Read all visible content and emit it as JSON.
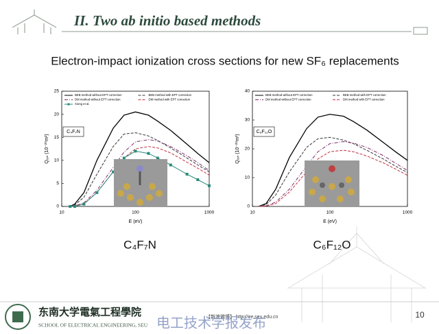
{
  "slide": {
    "title": "II. Two ab initio based methods",
    "subtitle": "Electron-impact ionization cross sections for new SF₆ replacements",
    "captions": [
      "C₄F₇N",
      "C₆F₁₂O"
    ],
    "school_cn": "东南大学電氣工程學院",
    "school_en": "SCHOOL OF ELECTRICAL ENGINEERING, SEU",
    "watermark": "【新浪微博】 http://ee.seu.edu.cn",
    "publisher": "电工技术学报发布",
    "page": "10"
  },
  "chart_data": [
    {
      "type": "line",
      "annotation": "C₄F₇N",
      "xlabel": "E (eV)",
      "ylabel": "Qᵢₒₙ (10⁻²⁰m²)",
      "xscale": "log",
      "xlim": [
        10,
        1000
      ],
      "xticks": [
        10,
        100,
        1000
      ],
      "ylim": [
        0,
        25
      ],
      "yticks": [
        0,
        5,
        10,
        15,
        20,
        25
      ],
      "x": [
        13,
        15,
        20,
        30,
        50,
        70,
        100,
        150,
        200,
        300,
        500,
        700,
        1000
      ],
      "series": [
        {
          "name": "BEB method without EPT correction",
          "color": "#000000",
          "style": "solid",
          "values": [
            0,
            0.5,
            3,
            10,
            17,
            19.8,
            20.5,
            19.8,
            18.5,
            16.5,
            13.5,
            11.5,
            9.5
          ]
        },
        {
          "name": "BEB method with EPT correction",
          "color": "#333333",
          "style": "dashed",
          "values": [
            0,
            0.3,
            2,
            7,
            13,
            15.7,
            16,
            15.3,
            14.3,
            12.7,
            10.5,
            9,
            7.5
          ]
        },
        {
          "name": "DM method without EPT correction",
          "color": "#7a2a6a",
          "style": "dashdot",
          "values": [
            0,
            0.1,
            0.8,
            3.5,
            8.5,
            11.8,
            14,
            14.5,
            14.2,
            13,
            11,
            9.5,
            7.8
          ]
        },
        {
          "name": "DM method with EPT correction",
          "color": "#c03040",
          "style": "dashed",
          "values": [
            0,
            0.1,
            0.6,
            3,
            7.5,
            10.5,
            12.5,
            13,
            12.7,
            11.6,
            9.6,
            8.3,
            6.8
          ]
        },
        {
          "name": "Xiong et al.",
          "color": "#2a8a7a",
          "style": "markers",
          "values": [
            0,
            0,
            0.5,
            3,
            7.5,
            10.5,
            12,
            11.5,
            10.5,
            9,
            7,
            5.8,
            4.5
          ]
        }
      ]
    },
    {
      "type": "line",
      "annotation": "C₆F₁₂O",
      "xlabel": "E (eV)",
      "ylabel": "Qᵢₒₙ (10⁻²⁰m²)",
      "xscale": "log",
      "xlim": [
        10,
        1000
      ],
      "xticks": [
        10,
        100,
        1000
      ],
      "ylim": [
        0,
        40
      ],
      "yticks": [
        0,
        10,
        20,
        30,
        40
      ],
      "x": [
        12,
        15,
        20,
        30,
        50,
        70,
        100,
        150,
        200,
        300,
        500,
        700,
        1000
      ],
      "series": [
        {
          "name": "BEB method without EPT correction",
          "color": "#000000",
          "style": "solid",
          "values": [
            0,
            1,
            6,
            17,
            27,
            31,
            32,
            31.3,
            29.5,
            26.5,
            22,
            19,
            16
          ]
        },
        {
          "name": "BEB method with EPT correction",
          "color": "#333333",
          "style": "dashed",
          "values": [
            0,
            0.6,
            4,
            12,
            20.5,
            23.5,
            24,
            23,
            21.8,
            19.5,
            16.3,
            14,
            11.8
          ]
        },
        {
          "name": "DM method without EPT correction",
          "color": "#7a2a6a",
          "style": "dashdot",
          "values": [
            0,
            0.2,
            1.5,
            6,
            14,
            19,
            21.8,
            22.5,
            22,
            20.5,
            17.5,
            15,
            12.5
          ]
        },
        {
          "name": "DM method with EPT correction",
          "color": "#c03040",
          "style": "dashed",
          "values": [
            0,
            0.1,
            1,
            5,
            12,
            16.5,
            19,
            19.5,
            19,
            17.5,
            15,
            13,
            10.8
          ]
        }
      ]
    }
  ]
}
